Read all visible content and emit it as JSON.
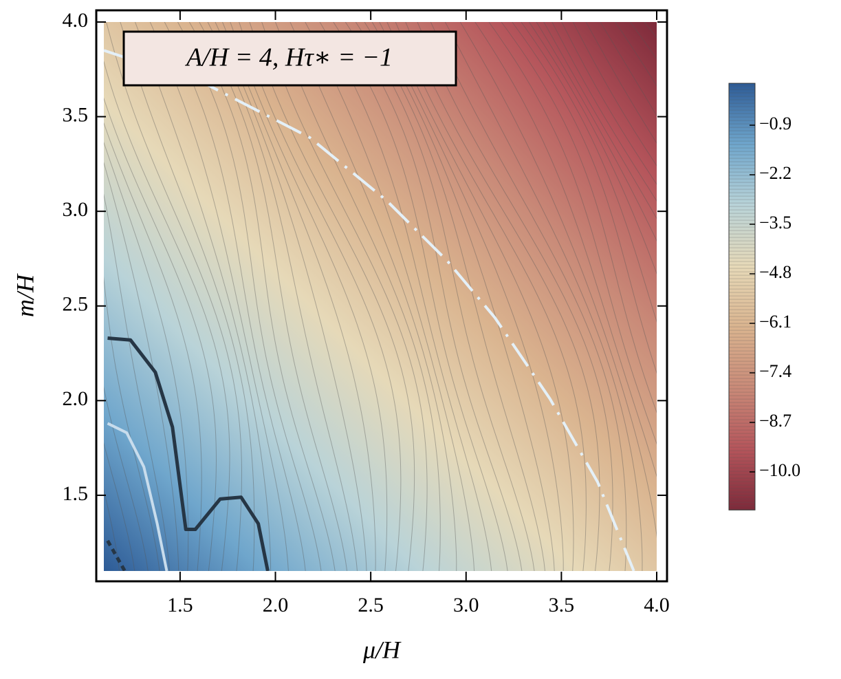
{
  "chart_data": {
    "type": "contour",
    "annotation": "A/H = 4, Hτ∗ = −1",
    "x_label": "μ/H",
    "y_label": "m/H",
    "xlim": [
      1.1,
      4.0
    ],
    "ylim": [
      1.1,
      4.0
    ],
    "xticks": [
      1.5,
      {
        "value": 2,
        "label": "2.0"
      },
      2.5,
      {
        "value": 3,
        "label": "3.0"
      },
      3.5,
      {
        "value": 4,
        "label": "4.0"
      }
    ],
    "yticks": [
      1.5,
      {
        "value": 2,
        "label": "2.0"
      },
      2.5,
      {
        "value": 3,
        "label": "3.0"
      },
      3.5,
      {
        "value": 4,
        "label": "4.0"
      }
    ],
    "colorbar": {
      "lim": [
        -11,
        0.2
      ],
      "ticks": [
        {
          "value": -0.9,
          "label": "−0.9"
        },
        {
          "value": -2.2,
          "label": "−2.2"
        },
        {
          "value": -3.5,
          "label": "−3.5"
        },
        {
          "value": -4.8,
          "label": "−4.8"
        },
        {
          "value": -6.1,
          "label": "−6.1"
        },
        {
          "value": -7.4,
          "label": "−7.4"
        },
        {
          "value": -8.7,
          "label": "−8.7"
        },
        {
          "value": -10,
          "label": "−10.0"
        }
      ],
      "colors": [
        "#7d2a3a",
        "#b5555b",
        "#c98a78",
        "#dab48f",
        "#e6d9b8",
        "#b9d3d8",
        "#6fa6cc",
        "#2d5b96"
      ]
    },
    "series": [
      {
        "color": "#e4f0f8",
        "style": "dashdot",
        "x": [
          1.1,
          1.64,
          2.18,
          2.58,
          2.9,
          3.15,
          3.44,
          3.69,
          3.88
        ],
        "values": [
          3.85,
          3.67,
          3.39,
          3.06,
          2.74,
          2.44,
          2.01,
          1.57,
          1.1
        ]
      },
      {
        "color": "#263645",
        "style": "solid",
        "x": [
          1.12,
          1.24,
          1.37,
          1.46,
          1.53,
          1.58,
          1.71,
          1.82,
          1.91,
          1.96
        ],
        "values": [
          2.33,
          2.32,
          2.15,
          1.86,
          1.32,
          1.32,
          1.48,
          1.49,
          1.35,
          1.1
        ]
      },
      {
        "color": "#c8dcec",
        "style": "solid",
        "x": [
          1.12,
          1.22,
          1.31,
          1.38,
          1.43
        ],
        "values": [
          1.88,
          1.83,
          1.65,
          1.35,
          1.1
        ]
      },
      {
        "color": "#263645",
        "style": "dashed",
        "x": [
          1.12,
          1.21
        ],
        "values": [
          1.26,
          1.1
        ]
      }
    ]
  }
}
